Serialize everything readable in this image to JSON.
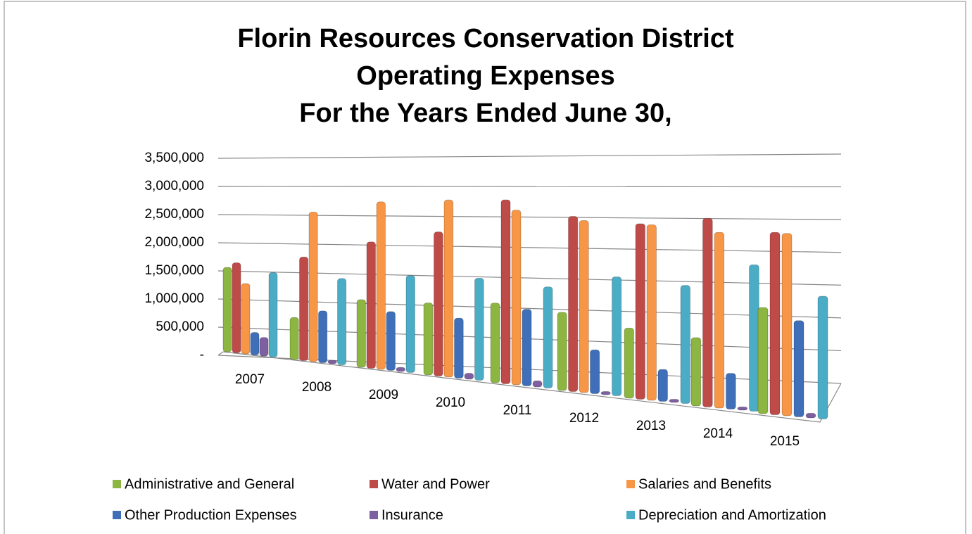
{
  "chart_data": {
    "type": "bar3d",
    "title": "Florin Resources Conservation District",
    "subtitle": [
      "Operating Expenses",
      "For the Years Ended June 30,"
    ],
    "categories": [
      "2007",
      "2008",
      "2009",
      "2010",
      "2011",
      "2012",
      "2013",
      "2014",
      "2015"
    ],
    "series": [
      {
        "name": "Administrative and General",
        "color": "#8db542",
        "values": [
          1500000,
          730000,
          1150000,
          1200000,
          1300000,
          1250000,
          1100000,
          1050000,
          1600000
        ]
      },
      {
        "name": "Water and Power",
        "color": "#be4b48",
        "values": [
          1600000,
          1800000,
          2150000,
          2400000,
          3000000,
          2800000,
          2750000,
          2900000,
          2750000
        ]
      },
      {
        "name": "Salaries and Benefits",
        "color": "#f79646",
        "values": [
          1250000,
          2600000,
          2850000,
          2950000,
          2850000,
          2750000,
          2750000,
          2700000,
          2750000
        ]
      },
      {
        "name": "Other Production Expenses",
        "color": "#3f6fb8",
        "values": [
          400000,
          900000,
          1000000,
          1000000,
          1250000,
          700000,
          500000,
          550000,
          1450000
        ]
      },
      {
        "name": "Insurance",
        "color": "#7e5fa0",
        "values": [
          330000,
          60000,
          70000,
          100000,
          100000,
          50000,
          50000,
          50000,
          70000
        ]
      },
      {
        "name": "Depreciation and Amortization",
        "color": "#4bacc6",
        "values": [
          1500000,
          1500000,
          1650000,
          1700000,
          1650000,
          1900000,
          1850000,
          2250000,
          1850000
        ]
      }
    ],
    "ylim": [
      0,
      3500000
    ],
    "yticks": [
      {
        "value": 0,
        "label": "-"
      },
      {
        "value": 500000,
        "label": "500,000"
      },
      {
        "value": 1000000,
        "label": "1,000,000"
      },
      {
        "value": 1500000,
        "label": "1,500,000"
      },
      {
        "value": 2000000,
        "label": "2,000,000"
      },
      {
        "value": 2500000,
        "label": "2,500,000"
      },
      {
        "value": 3000000,
        "label": "3,000,000"
      },
      {
        "value": 3500000,
        "label": "3,500,000"
      }
    ],
    "grid": true,
    "legend": "bottom"
  }
}
